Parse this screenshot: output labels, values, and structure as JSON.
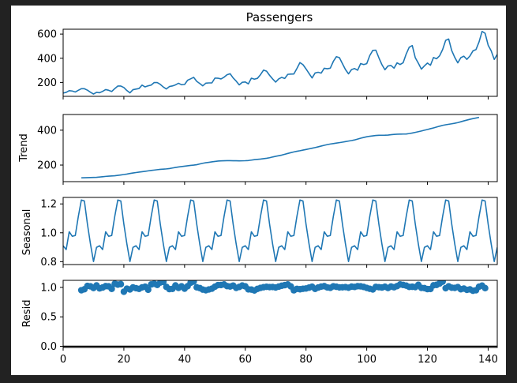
{
  "chart_data": {
    "type": "line",
    "title": "Passengers",
    "x": {
      "range": [
        0,
        143
      ],
      "ticks": [
        0,
        20,
        40,
        60,
        80,
        100,
        120,
        140
      ],
      "tick_labels": [
        "0",
        "20",
        "40",
        "60",
        "80",
        "100",
        "120",
        "140"
      ],
      "tick_labels_on": "bottom-panel"
    },
    "colors": {
      "series": "#1f77b4",
      "figure_background": "#222222",
      "plot_background": "#ffffff",
      "resid_baseline": "#000000"
    },
    "panels": [
      {
        "name": "observed",
        "ylabel": "",
        "ylim": [
          85,
          640
        ],
        "yticks": [
          200,
          400,
          600
        ],
        "ytick_labels": [
          "200",
          "400",
          "600"
        ],
        "kind": "line",
        "series": {
          "x_start": 0,
          "values": [
            112,
            118,
            132,
            129,
            121,
            135,
            148,
            148,
            136,
            119,
            104,
            118,
            115,
            126,
            141,
            135,
            125,
            149,
            170,
            170,
            158,
            133,
            114,
            140,
            145,
            150,
            178,
            163,
            172,
            178,
            199,
            199,
            184,
            162,
            146,
            166,
            171,
            180,
            193,
            181,
            183,
            218,
            230,
            242,
            209,
            191,
            172,
            194,
            196,
            196,
            236,
            235,
            229,
            243,
            264,
            272,
            237,
            211,
            180,
            201,
            204,
            188,
            235,
            227,
            234,
            264,
            302,
            293,
            259,
            229,
            203,
            229,
            242,
            233,
            267,
            269,
            270,
            315,
            364,
            347,
            312,
            274,
            237,
            278,
            284,
            277,
            317,
            313,
            318,
            374,
            413,
            405,
            355,
            306,
            271,
            306,
            315,
            301,
            356,
            348,
            355,
            422,
            465,
            467,
            404,
            347,
            305,
            336,
            340,
            318,
            362,
            348,
            363,
            435,
            491,
            505,
            404,
            359,
            310,
            337,
            360,
            342,
            406,
            396,
            420,
            472,
            548,
            559,
            463,
            407,
            362,
            405,
            417,
            391,
            419,
            461,
            472,
            535,
            622,
            606,
            508,
            461,
            390,
            432
          ]
        }
      },
      {
        "name": "trend",
        "ylabel": "Trend",
        "ylim": [
          105,
          490
        ],
        "yticks": [
          200,
          400
        ],
        "ytick_labels": [
          "200",
          "400"
        ],
        "kind": "line",
        "series": {
          "x_start": 6,
          "values": [
            126.8,
            127.3,
            127.96,
            128.58,
            129.0,
            129.75,
            131.25,
            133.08,
            134.92,
            136.42,
            137.42,
            138.75,
            140.92,
            143.17,
            145.71,
            148.42,
            151.54,
            154.71,
            157.13,
            159.54,
            161.83,
            164.13,
            166.67,
            169.08,
            171.25,
            173.58,
            175.46,
            176.83,
            178.04,
            180.17,
            183.13,
            186.21,
            189.04,
            191.29,
            193.58,
            195.83,
            198.04,
            199.75,
            202.21,
            206.25,
            210.42,
            213.38,
            215.83,
            218.5,
            220.92,
            222.92,
            224.08,
            224.71,
            225.33,
            225.33,
            224.96,
            224.58,
            224.29,
            224.5,
            225.0,
            226.08,
            228.5,
            230.88,
            232.67,
            234.46,
            236.63,
            238.79,
            241.96,
            246.42,
            250.08,
            253.5,
            257.13,
            261.83,
            266.67,
            271.13,
            275.29,
            279.21,
            282.33,
            286.0,
            289.42,
            292.92,
            296.5,
            300.38,
            304.67,
            309.08,
            313.42,
            317.29,
            320.63,
            323.42,
            326.04,
            328.67,
            331.54,
            334.67,
            337.63,
            340.54,
            344.08,
            348.92,
            354.0,
            358.46,
            362.42,
            365.33,
            367.54,
            369.5,
            370.75,
            371.17,
            371.21,
            371.88,
            374.33,
            375.96,
            377.08,
            377.58,
            377.92,
            378.33,
            380.71,
            383.92,
            387.54,
            391.46,
            395.54,
            399.83,
            404.08,
            408.71,
            413.13,
            417.96,
            423.0,
            427.63,
            431.13,
            434.0,
            436.71,
            439.83,
            443.63,
            448.38,
            453.38,
            458.0,
            462.5,
            466.58,
            470.0,
            473.58
          ]
        }
      },
      {
        "name": "seasonal",
        "ylabel": "Seasonal",
        "ylim": [
          0.78,
          1.245
        ],
        "yticks": [
          0.8,
          1.0,
          1.2
        ],
        "ytick_labels": [
          "0.8",
          "1.0",
          "1.2"
        ],
        "kind": "line",
        "period": 12,
        "pattern": [
          0.91,
          0.884,
          1.007,
          0.976,
          0.981,
          1.113,
          1.227,
          1.22,
          1.06,
          0.922,
          0.801,
          0.899
        ]
      },
      {
        "name": "resid",
        "ylabel": "Resid",
        "ylim": [
          -0.02,
          1.12
        ],
        "yticks": [
          0.0,
          0.5,
          1.0
        ],
        "ytick_labels": [
          "0.0",
          "0.5",
          "1.0"
        ],
        "kind": "scatter",
        "baseline": 0,
        "series": {
          "x_start": 6,
          "values": [
            0.952,
            0.968,
            1.025,
            1.018,
            0.991,
            1.033,
            0.984,
            0.998,
            1.021,
            1.018,
            0.975,
            1.062,
            1.048,
            1.055,
            0.927,
            0.978,
            0.965,
            1.0,
            0.987,
            0.975,
            1.0,
            1.012,
            0.96,
            1.05,
            1.062,
            1.043,
            1.082,
            1.094,
            1.009,
            0.971,
            0.975,
            1.033,
            0.992,
            1.018,
            0.978,
            1.02,
            1.08,
            1.1,
            1.002,
            0.989,
            0.963,
            0.952,
            0.965,
            0.978,
            1.012,
            1.039,
            1.04,
            1.05,
            1.022,
            1.015,
            1.031,
            0.992,
            1.008,
            1.032,
            1.018,
            0.967,
            0.963,
            0.948,
            0.975,
            0.992,
            1.003,
            1.01,
            1.005,
            1.007,
            0.999,
            1.013,
            1.028,
            1.038,
            1.05,
            1.017,
            0.951,
            0.975,
            0.969,
            0.977,
            0.982,
            0.996,
            1.012,
            0.975,
            0.998,
            1.014,
            1.021,
            1.0,
            0.993,
            1.018,
            1.011,
            1.0,
            1.002,
            1.005,
            0.995,
            1.013,
            1.008,
            1.02,
            1.018,
            1.008,
            0.992,
            0.977,
            0.965,
            1.009,
            1.004,
            0.998,
            1.012,
            0.99,
            1.015,
            1.003,
            1.022,
            1.05,
            1.042,
            1.03,
            1.009,
            1.011,
            1.005,
            1.044,
            0.992,
            0.988,
            0.971,
            0.974,
            1.035,
            1.043,
            1.066,
            1.098,
            0.987,
            1.018,
            0.995,
            0.992,
            1.005,
            0.969,
            0.98,
            0.958,
            0.966,
            0.943,
            0.952,
            1.012,
            1.03,
            0.988
          ]
        }
      }
    ]
  }
}
